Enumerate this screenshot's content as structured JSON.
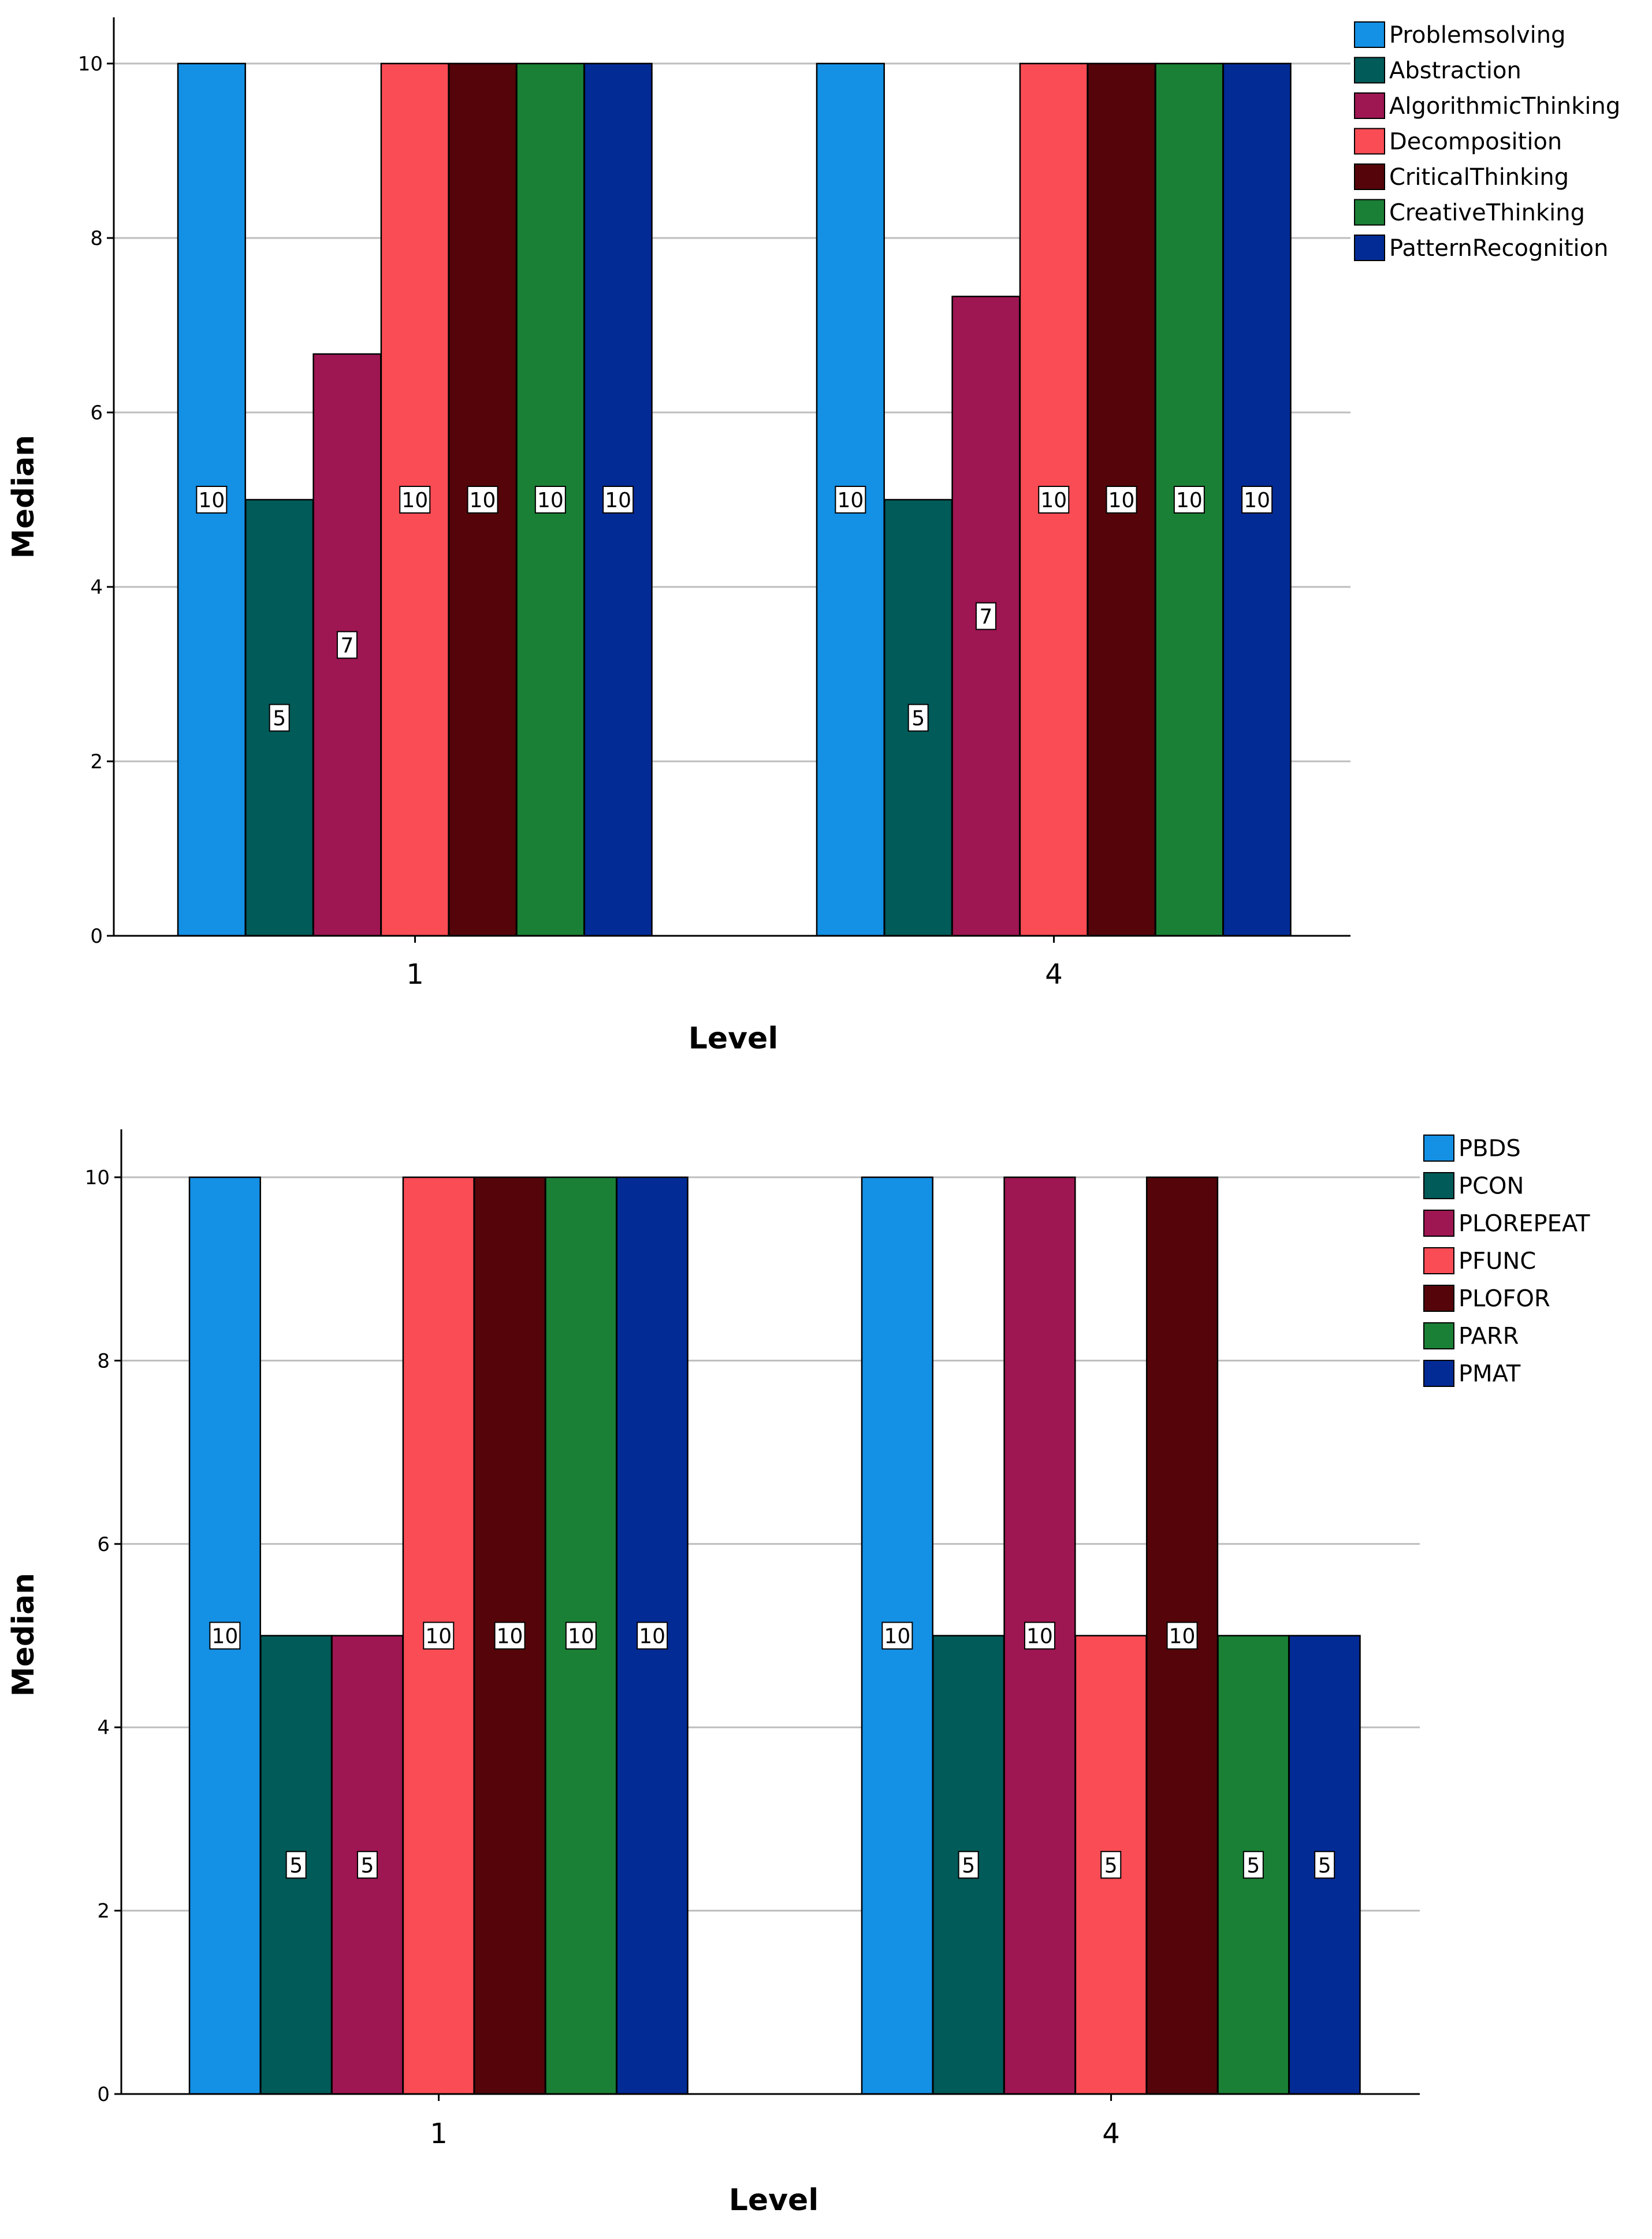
{
  "chart_data": [
    {
      "type": "bar",
      "title": "",
      "xlabel": "Level",
      "ylabel": "Median",
      "ylim": [
        0,
        10.5
      ],
      "yticks": [
        0,
        2,
        4,
        6,
        8,
        10
      ],
      "grid": true,
      "legend": "top-right",
      "categories": [
        "1",
        "4"
      ],
      "series": [
        {
          "name": "Problemsolving",
          "color": "#1490E5",
          "values": [
            10,
            10
          ],
          "labels": [
            "10",
            "10"
          ]
        },
        {
          "name": "Abstraction",
          "color": "#005B59",
          "values": [
            5,
            5
          ],
          "labels": [
            "5",
            "5"
          ]
        },
        {
          "name": "AlgorithmicThinking",
          "color": "#9E1652",
          "values": [
            6.67,
            7.33
          ],
          "labels": [
            "7",
            "7"
          ]
        },
        {
          "name": "Decomposition",
          "color": "#F94C55",
          "values": [
            10,
            10
          ],
          "labels": [
            "10",
            "10"
          ]
        },
        {
          "name": "CriticalThinking",
          "color": "#55050A",
          "values": [
            10,
            10
          ],
          "labels": [
            "10",
            "10"
          ]
        },
        {
          "name": "CreativeThinking",
          "color": "#1A8035",
          "values": [
            10,
            10
          ],
          "labels": [
            "10",
            "10"
          ]
        },
        {
          "name": "PatternRecognition",
          "color": "#022B96",
          "values": [
            10,
            10
          ],
          "labels": [
            "10",
            "10"
          ]
        }
      ]
    },
    {
      "type": "bar",
      "title": "",
      "xlabel": "Level",
      "ylabel": "Median",
      "ylim": [
        0,
        10.5
      ],
      "yticks": [
        0,
        2,
        4,
        6,
        8,
        10
      ],
      "grid": true,
      "legend": "top-right",
      "categories": [
        "1",
        "4"
      ],
      "series": [
        {
          "name": "PBDS",
          "color": "#1490E5",
          "values": [
            10,
            10
          ],
          "labels": [
            "10",
            "10"
          ]
        },
        {
          "name": "PCON",
          "color": "#005B59",
          "values": [
            5,
            5
          ],
          "labels": [
            "5",
            "5"
          ]
        },
        {
          "name": "PLOREPEAT",
          "color": "#9E1652",
          "values": [
            5,
            10
          ],
          "labels": [
            "5",
            "10"
          ]
        },
        {
          "name": "PFUNC",
          "color": "#F94C55",
          "values": [
            10,
            5
          ],
          "labels": [
            "10",
            "5"
          ]
        },
        {
          "name": "PLOFOR",
          "color": "#55050A",
          "values": [
            10,
            10
          ],
          "labels": [
            "10",
            "10"
          ]
        },
        {
          "name": "PARR",
          "color": "#1A8035",
          "values": [
            10,
            5
          ],
          "labels": [
            "10",
            "5"
          ]
        },
        {
          "name": "PMAT",
          "color": "#022B96",
          "values": [
            10,
            5
          ],
          "labels": [
            "10",
            "5"
          ]
        }
      ]
    }
  ]
}
